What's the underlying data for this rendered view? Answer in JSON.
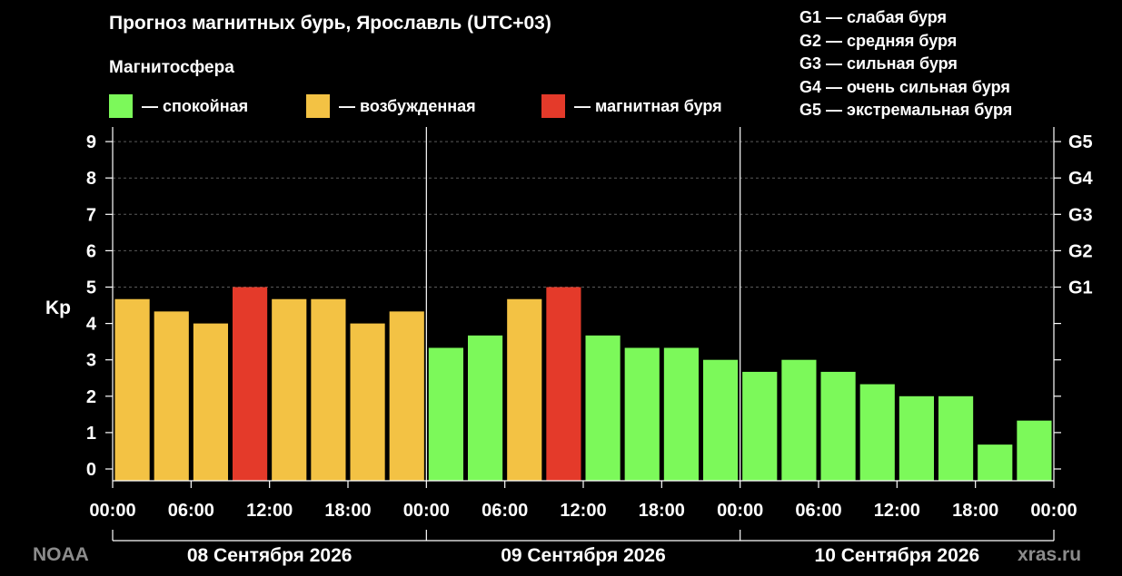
{
  "title": "Прогноз магнитных бурь, Ярославль (UTC+03)",
  "subtitle": "Магнитосфера",
  "legend": [
    {
      "label": "— спокойная",
      "color": "#7cf95a"
    },
    {
      "label": "— возбужденная",
      "color": "#f3c244"
    },
    {
      "label": "— магнитная буря",
      "color": "#e43a2a"
    }
  ],
  "storm_levels": [
    "G1 — слабая буря",
    "G2 — средняя буря",
    "G3 — сильная буря",
    "G4 — очень сильная буря",
    "G5 — экстремальная буря"
  ],
  "source": "NOAA",
  "site": "xras.ru",
  "chart_data": {
    "type": "bar",
    "ylabel": "Kp",
    "ylim": [
      0,
      9
    ],
    "yticks": [
      "0",
      "1",
      "2",
      "3",
      "4",
      "5",
      "6",
      "7",
      "8",
      "9"
    ],
    "right_ticks": [
      {
        "kp": 5,
        "label": "G1"
      },
      {
        "kp": 6,
        "label": "G2"
      },
      {
        "kp": 7,
        "label": "G3"
      },
      {
        "kp": 8,
        "label": "G4"
      },
      {
        "kp": 9,
        "label": "G5"
      }
    ],
    "xticks": [
      "00:00",
      "06:00",
      "12:00",
      "18:00",
      "00:00",
      "06:00",
      "12:00",
      "18:00",
      "00:00",
      "06:00",
      "12:00",
      "18:00",
      "00:00"
    ],
    "days": [
      "08 Сентября 2026",
      "09 Сентября 2026",
      "10 Сентября 2026"
    ],
    "colors": {
      "quiet": "#7cf95a",
      "active": "#f3c244",
      "storm": "#e43a2a"
    },
    "grid": true,
    "values": [
      4.67,
      4.33,
      4.0,
      5.0,
      4.67,
      4.67,
      4.0,
      4.33,
      3.33,
      3.67,
      4.67,
      5.0,
      3.67,
      3.33,
      3.33,
      3.0,
      2.67,
      3.0,
      2.67,
      2.33,
      2.0,
      2.0,
      0.67,
      1.33
    ]
  }
}
